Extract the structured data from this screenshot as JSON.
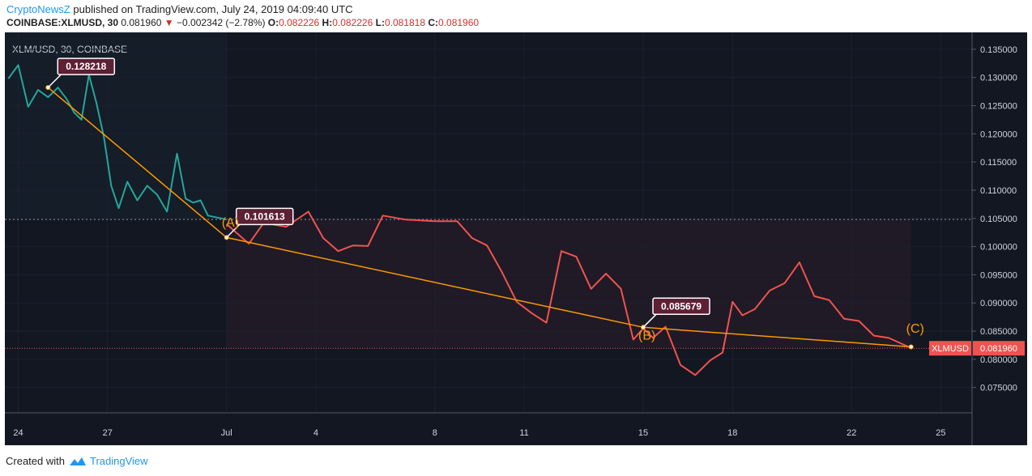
{
  "header": {
    "author": "CryptoNewsZ",
    "published_text": "published on TradingView.com, July 24, 2019 04:09:40 UTC"
  },
  "quote": {
    "symbol": "COINBASE:XLMUSD, 30",
    "last": "0.081960",
    "change": "−0.002342 (−2.78%)",
    "o_label": "O:",
    "o": "0.082226",
    "h_label": "H:",
    "h": "0.082226",
    "l_label": "L:",
    "l": "0.081818",
    "c_label": "C:",
    "c": "0.081960"
  },
  "footer": {
    "created_with": "Created with",
    "brand": "TradingView"
  },
  "colors": {
    "background": "#131722",
    "up": "#26a69a",
    "down": "#ef5350",
    "trendline": "#ff9800",
    "label_bg": "#5d2035"
  },
  "chart_data": {
    "type": "line",
    "title": "XLM/USD, 30, COINBASE",
    "xlabel": "",
    "ylabel": "",
    "ylim": [
      0.0705,
      0.138
    ],
    "x_tick_labels": [
      "24",
      "27",
      "Jul",
      "4",
      "8",
      "11",
      "15",
      "18",
      "22",
      "25"
    ],
    "y_tick_labels": [
      "0.135000",
      "0.130000",
      "0.125000",
      "0.120000",
      "0.115000",
      "0.110000",
      "0.105000",
      "0.100000",
      "0.095000",
      "0.090000",
      "0.085000",
      "0.080000",
      "0.075000"
    ],
    "reference_price": 0.1048,
    "current_price": 0.08196,
    "current_price_label": "0.081960",
    "symbol_tag": "XLMUSD",
    "series": [
      {
        "color": "up",
        "x": [
          "Jun 24",
          "Jun 24",
          "Jun 24",
          "Jun 25",
          "Jun 25",
          "Jun 25",
          "Jun 26",
          "Jun 26",
          "Jun 26",
          "Jun 26",
          "Jun 27",
          "Jun 27",
          "Jun 27",
          "Jun 27",
          "Jun 28",
          "Jun 28",
          "Jun 28",
          "Jun 29",
          "Jun 29",
          "Jun 29",
          "Jun 30",
          "Jun 30",
          "Jun 30",
          "Jun 30",
          "Jul 1"
        ],
        "values": [
          0.1298,
          0.1322,
          0.1248,
          0.1278,
          0.1265,
          0.1282,
          0.1262,
          0.1238,
          0.1225,
          0.1305,
          0.1255,
          0.1195,
          0.1108,
          0.1068,
          0.1115,
          0.1082,
          0.1108,
          0.1092,
          0.1062,
          0.1165,
          0.1085,
          0.1078,
          0.1082,
          0.1055,
          0.1048
        ]
      },
      {
        "color": "down",
        "x": [
          "Jul 1",
          "Jul 2",
          "Jul 2",
          "Jul 3",
          "Jul 4",
          "Jul 4",
          "Jul 5",
          "Jul 5",
          "Jul 6",
          "Jul 6",
          "Jul 7",
          "Jul 8",
          "Jul 9",
          "Jul 9",
          "Jul 10",
          "Jul 10",
          "Jul 11",
          "Jul 11",
          "Jul 12",
          "Jul 12",
          "Jul 13",
          "Jul 13",
          "Jul 14",
          "Jul 14",
          "Jul 15",
          "Jul 15",
          "Jul 15",
          "Jul 16",
          "Jul 16",
          "Jul 17",
          "Jul 17",
          "Jul 18",
          "Jul 18",
          "Jul 18",
          "Jul 19",
          "Jul 19",
          "Jul 20",
          "Jul 20",
          "Jul 21",
          "Jul 21",
          "Jul 22",
          "Jul 22",
          "Jul 23",
          "Jul 23",
          "Jul 24"
        ],
        "values": [
          0.104,
          0.1005,
          0.1042,
          0.1035,
          0.1062,
          0.1015,
          0.0992,
          0.1002,
          0.1001,
          0.1055,
          0.1048,
          0.1045,
          0.1045,
          0.1015,
          0.1002,
          0.0955,
          0.0902,
          0.0882,
          0.0865,
          0.0992,
          0.0982,
          0.0925,
          0.0952,
          0.0925,
          0.0835,
          0.0855,
          0.0838,
          0.0858,
          0.079,
          0.0772,
          0.0798,
          0.0812,
          0.0902,
          0.0878,
          0.0889,
          0.0922,
          0.0935,
          0.0972,
          0.0912,
          0.0905,
          0.0872,
          0.0868,
          0.0842,
          0.0838,
          0.082
        ]
      }
    ],
    "trendline": [
      {
        "x": "Jun 25",
        "y": 0.128218
      },
      {
        "x": "Jul 1",
        "y": 0.101613
      },
      {
        "x": "Jul 15",
        "y": 0.085679
      },
      {
        "x": "Jul 24",
        "y": 0.0822
      }
    ],
    "annotations": [
      {
        "text": "0.128218",
        "x": "Jun 25",
        "y": 0.128218
      },
      {
        "text": "0.101613",
        "x": "Jul 1",
        "y": 0.101613
      },
      {
        "text": "0.085679",
        "x": "Jul 15",
        "y": 0.085679
      }
    ],
    "wave_labels": [
      {
        "text": "(A)",
        "x": "Jul 1",
        "y": 0.1035
      },
      {
        "text": "(B)",
        "x": "Jul 15",
        "y": 0.0835
      },
      {
        "text": "(C)",
        "x": "Jul 24",
        "y": 0.0847
      }
    ]
  }
}
